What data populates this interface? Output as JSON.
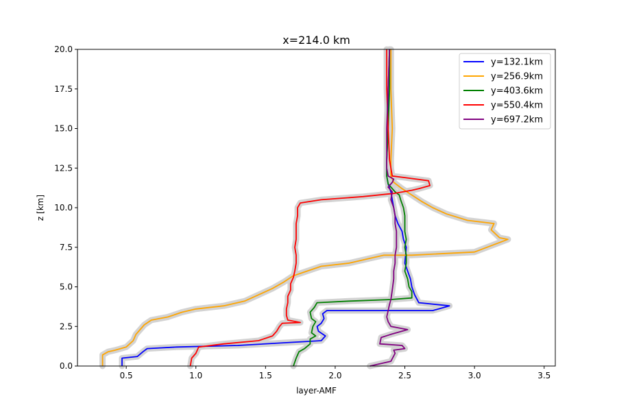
{
  "chart_data": {
    "type": "line",
    "title": "x=214.0 km",
    "xlabel": "layer-AMF",
    "ylabel": "z [km]",
    "xlim": [
      0.15,
      3.58
    ],
    "ylim": [
      0,
      20
    ],
    "x_ticks": [
      "0.5",
      "1.0",
      "1.5",
      "2.0",
      "2.5",
      "3.0",
      "3.5"
    ],
    "y_ticks": [
      "0.0",
      "2.5",
      "5.0",
      "7.5",
      "10.0",
      "12.5",
      "15.0",
      "17.5",
      "20.0"
    ],
    "grid": false,
    "legend_position": "top-right",
    "uncertainty_band_color": "#d3d3d3",
    "series": [
      {
        "name": "y=132.1km",
        "color": "#0000ff",
        "points": [
          [
            0.47,
            0
          ],
          [
            0.47,
            0.5
          ],
          [
            0.58,
            0.6
          ],
          [
            0.62,
            0.9
          ],
          [
            0.65,
            1.1
          ],
          [
            0.86,
            1.2
          ],
          [
            1.3,
            1.3
          ],
          [
            1.9,
            1.6
          ],
          [
            1.93,
            1.9
          ],
          [
            1.88,
            2.2
          ],
          [
            1.87,
            2.5
          ],
          [
            1.9,
            2.7
          ],
          [
            1.92,
            3.0
          ],
          [
            1.91,
            3.3
          ],
          [
            1.94,
            3.5
          ],
          [
            2.7,
            3.5
          ],
          [
            2.82,
            3.8
          ],
          [
            2.6,
            4.0
          ],
          [
            2.57,
            4.5
          ],
          [
            2.55,
            5.0
          ],
          [
            2.54,
            5.5
          ],
          [
            2.52,
            6.0
          ],
          [
            2.5,
            6.5
          ],
          [
            2.51,
            7.5
          ],
          [
            2.49,
            8.0
          ],
          [
            2.48,
            8.5
          ],
          [
            2.45,
            9.0
          ],
          [
            2.43,
            9.5
          ],
          [
            2.42,
            10.0
          ],
          [
            2.41,
            10.5
          ],
          [
            2.4,
            11.0
          ],
          [
            2.38,
            11.5
          ],
          [
            2.37,
            12.0
          ],
          [
            2.37,
            13.0
          ],
          [
            2.38,
            15.0
          ],
          [
            2.38,
            17.5
          ],
          [
            2.39,
            20
          ]
        ]
      },
      {
        "name": "y=256.9km",
        "color": "#ffa500",
        "points": [
          [
            0.33,
            0
          ],
          [
            0.33,
            0.7
          ],
          [
            0.37,
            0.9
          ],
          [
            0.42,
            1.0
          ],
          [
            0.5,
            1.2
          ],
          [
            0.55,
            1.6
          ],
          [
            0.57,
            2.0
          ],
          [
            0.6,
            2.3
          ],
          [
            0.63,
            2.6
          ],
          [
            0.68,
            2.9
          ],
          [
            0.8,
            3.1
          ],
          [
            0.9,
            3.4
          ],
          [
            1.0,
            3.6
          ],
          [
            1.2,
            3.8
          ],
          [
            1.35,
            4.1
          ],
          [
            1.45,
            4.5
          ],
          [
            1.55,
            4.9
          ],
          [
            1.63,
            5.3
          ],
          [
            1.7,
            5.7
          ],
          [
            1.8,
            6.0
          ],
          [
            1.9,
            6.3
          ],
          [
            2.1,
            6.5
          ],
          [
            2.25,
            6.8
          ],
          [
            2.35,
            7.0
          ],
          [
            2.55,
            7.0
          ],
          [
            3.0,
            7.2
          ],
          [
            3.24,
            8.0
          ],
          [
            3.18,
            8.1
          ],
          [
            3.12,
            8.6
          ],
          [
            3.14,
            9.0
          ],
          [
            2.95,
            9.2
          ],
          [
            2.8,
            9.6
          ],
          [
            2.7,
            10.0
          ],
          [
            2.62,
            10.4
          ],
          [
            2.55,
            10.8
          ],
          [
            2.48,
            11.2
          ],
          [
            2.42,
            11.6
          ],
          [
            2.4,
            12.0
          ],
          [
            2.4,
            13.0
          ],
          [
            2.41,
            15.0
          ],
          [
            2.4,
            17.5
          ],
          [
            2.4,
            20
          ]
        ]
      },
      {
        "name": "y=403.6km",
        "color": "#008000",
        "points": [
          [
            1.7,
            0
          ],
          [
            1.72,
            0.5
          ],
          [
            1.74,
            0.9
          ],
          [
            1.78,
            1.1
          ],
          [
            1.82,
            1.4
          ],
          [
            1.82,
            1.7
          ],
          [
            1.86,
            1.9
          ],
          [
            1.83,
            2.1
          ],
          [
            1.84,
            2.5
          ],
          [
            1.86,
            2.8
          ],
          [
            1.83,
            3.0
          ],
          [
            1.82,
            3.4
          ],
          [
            1.85,
            3.7
          ],
          [
            1.87,
            4.0
          ],
          [
            2.1,
            4.1
          ],
          [
            2.4,
            4.2
          ],
          [
            2.55,
            4.3
          ],
          [
            2.55,
            4.7
          ],
          [
            2.53,
            5.0
          ],
          [
            2.52,
            5.5
          ],
          [
            2.5,
            6.0
          ],
          [
            2.51,
            6.5
          ],
          [
            2.51,
            7.0
          ],
          [
            2.5,
            7.5
          ],
          [
            2.51,
            8.0
          ],
          [
            2.5,
            8.5
          ],
          [
            2.5,
            9.0
          ],
          [
            2.5,
            9.5
          ],
          [
            2.49,
            10.0
          ],
          [
            2.47,
            10.5
          ],
          [
            2.46,
            10.8
          ],
          [
            2.43,
            11.0
          ],
          [
            2.38,
            11.5
          ],
          [
            2.37,
            12.0
          ],
          [
            2.37,
            13.0
          ],
          [
            2.38,
            15.0
          ],
          [
            2.39,
            17.5
          ],
          [
            2.39,
            20
          ]
        ]
      },
      {
        "name": "y=550.4km",
        "color": "#ff0000",
        "points": [
          [
            0.96,
            0
          ],
          [
            0.97,
            0.5
          ],
          [
            1.0,
            0.8
          ],
          [
            1.02,
            1.2
          ],
          [
            1.2,
            1.4
          ],
          [
            1.45,
            1.6
          ],
          [
            1.55,
            1.9
          ],
          [
            1.58,
            2.2
          ],
          [
            1.6,
            2.5
          ],
          [
            1.62,
            2.7
          ],
          [
            1.75,
            2.75
          ],
          [
            1.66,
            2.9
          ],
          [
            1.65,
            3.2
          ],
          [
            1.65,
            3.6
          ],
          [
            1.66,
            4.0
          ],
          [
            1.66,
            4.4
          ],
          [
            1.68,
            4.8
          ],
          [
            1.68,
            5.2
          ],
          [
            1.7,
            5.6
          ],
          [
            1.71,
            6.0
          ],
          [
            1.72,
            6.5
          ],
          [
            1.72,
            7.0
          ],
          [
            1.71,
            7.5
          ],
          [
            1.72,
            8.0
          ],
          [
            1.72,
            8.5
          ],
          [
            1.72,
            9.0
          ],
          [
            1.73,
            9.5
          ],
          [
            1.73,
            10.0
          ],
          [
            1.75,
            10.3
          ],
          [
            1.9,
            10.5
          ],
          [
            2.2,
            10.7
          ],
          [
            2.42,
            10.9
          ],
          [
            2.55,
            11.1
          ],
          [
            2.6,
            11.2
          ],
          [
            2.68,
            11.4
          ],
          [
            2.67,
            11.7
          ],
          [
            2.5,
            11.9
          ],
          [
            2.41,
            12.0
          ],
          [
            2.4,
            12.5
          ],
          [
            2.39,
            13.0
          ],
          [
            2.38,
            15.0
          ],
          [
            2.37,
            17.5
          ],
          [
            2.37,
            20
          ]
        ]
      },
      {
        "name": "y=697.2km",
        "color": "#800080",
        "points": [
          [
            2.25,
            0
          ],
          [
            2.4,
            0.3
          ],
          [
            2.43,
            0.8
          ],
          [
            2.42,
            1.0
          ],
          [
            2.5,
            1.1
          ],
          [
            2.48,
            1.3
          ],
          [
            2.32,
            1.4
          ],
          [
            2.33,
            1.8
          ],
          [
            2.4,
            2.0
          ],
          [
            2.52,
            2.3
          ],
          [
            2.4,
            2.5
          ],
          [
            2.38,
            2.8
          ],
          [
            2.37,
            3.1
          ],
          [
            2.38,
            3.5
          ],
          [
            2.39,
            3.9
          ],
          [
            2.4,
            4.2
          ],
          [
            2.41,
            4.8
          ],
          [
            2.42,
            5.5
          ],
          [
            2.42,
            6.0
          ],
          [
            2.43,
            6.5
          ],
          [
            2.43,
            7.0
          ],
          [
            2.44,
            7.5
          ],
          [
            2.44,
            8.0
          ],
          [
            2.44,
            8.5
          ],
          [
            2.43,
            9.0
          ],
          [
            2.43,
            9.5
          ],
          [
            2.42,
            10.0
          ],
          [
            2.4,
            10.5
          ],
          [
            2.41,
            11.0
          ],
          [
            2.38,
            11.3
          ],
          [
            2.41,
            11.6
          ],
          [
            2.42,
            11.8
          ],
          [
            2.38,
            12.0
          ],
          [
            2.37,
            12.5
          ],
          [
            2.37,
            13.0
          ],
          [
            2.37,
            15.0
          ],
          [
            2.38,
            17.5
          ],
          [
            2.39,
            20
          ]
        ]
      }
    ]
  }
}
